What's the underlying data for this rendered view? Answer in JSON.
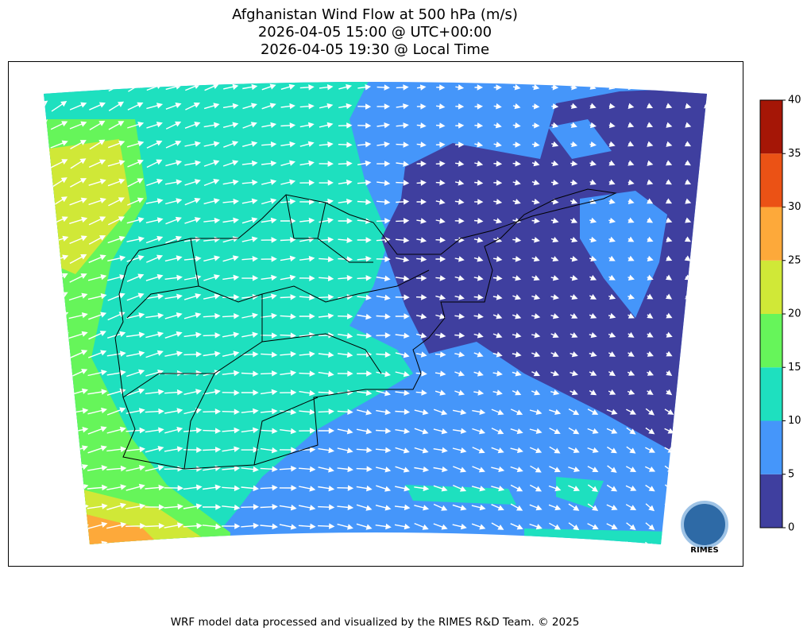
{
  "title": [
    "Afghanistan Wind Flow at 500 hPa (m/s)",
    "2026-04-05 15:00 @ UTC+00:00",
    "2026-04-05 19:30 @ Local Time"
  ],
  "colorbar": {
    "ticks": [
      0,
      5,
      10,
      15,
      20,
      25,
      30,
      35,
      40
    ],
    "colors": [
      "#3f3f9f",
      "#4596fa",
      "#1ee0bf",
      "#66f55a",
      "#d0e837",
      "#fda93a",
      "#eb5215",
      "#a51606"
    ]
  },
  "logo": "RIMES",
  "footer": "WRF model data processed and visualized by the RIMES R&D Team. © 2025"
}
